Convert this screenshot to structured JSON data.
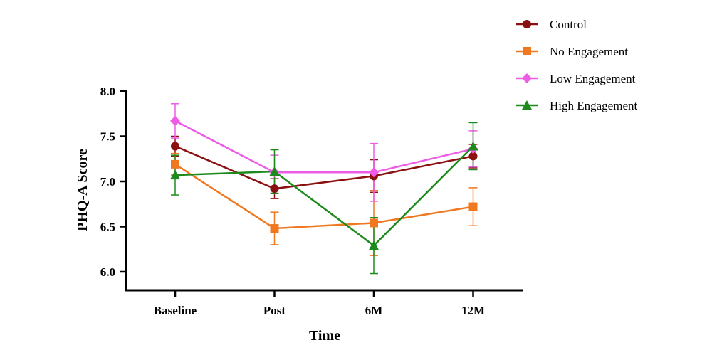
{
  "chart_data": {
    "type": "line",
    "title": "",
    "xlabel": "Time",
    "ylabel": "PHQ-A Score",
    "categories": [
      "Baseline",
      "Post",
      "6M",
      "12M"
    ],
    "ylim": [
      6.0,
      8.0
    ],
    "yticks": [
      "6.0",
      "6.5",
      "7.0",
      "7.5",
      "8.0"
    ],
    "legend_position": "top-right",
    "series": [
      {
        "name": "Control",
        "color": "#8B1010",
        "marker": "circle",
        "values": [
          7.39,
          6.92,
          7.06,
          7.28
        ],
        "errors": [
          0.11,
          0.11,
          0.18,
          0.13
        ]
      },
      {
        "name": "No Engagement",
        "color": "#F07820",
        "marker": "square",
        "values": [
          7.19,
          6.48,
          6.54,
          6.72
        ],
        "errors": [
          0.12,
          0.18,
          0.36,
          0.21
        ]
      },
      {
        "name": "Low Engagement",
        "color": "#EE5CE6",
        "marker": "diamond",
        "values": [
          7.67,
          7.1,
          7.1,
          7.36
        ],
        "errors": [
          0.19,
          0.19,
          0.32,
          0.2
        ]
      },
      {
        "name": "High Engagement",
        "color": "#1E8A1E",
        "marker": "triangle",
        "values": [
          7.07,
          7.11,
          6.29,
          7.39
        ],
        "errors": [
          0.22,
          0.24,
          0.31,
          0.26
        ]
      }
    ]
  }
}
